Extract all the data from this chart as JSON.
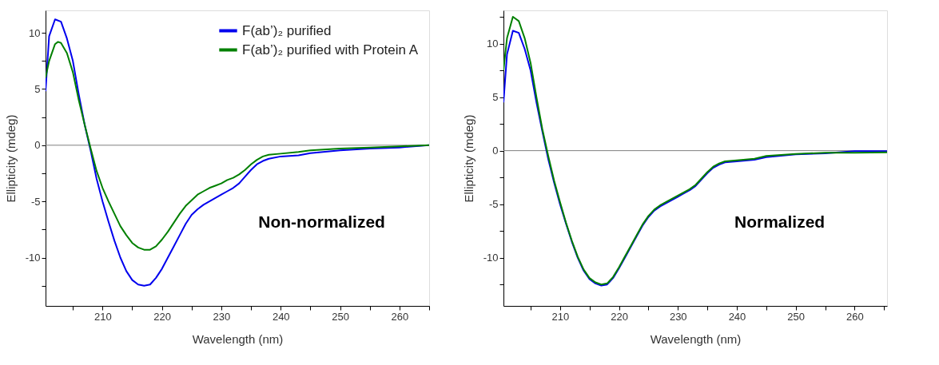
{
  "chart_data": [
    {
      "type": "line",
      "xlabel": "Wavelength (nm)",
      "ylabel": "Ellipticity (mdeg)",
      "annotations": [
        "Non-normalized"
      ],
      "xlim": [
        200.4,
        265
      ],
      "ylim": [
        -14.3,
        12
      ],
      "xticks": [
        {
          "value": 205,
          "label": null
        },
        210,
        {
          "value": 215,
          "label": null
        },
        220,
        {
          "value": 225,
          "label": null
        },
        230,
        {
          "value": 235,
          "label": null
        },
        240,
        {
          "value": 245,
          "label": null
        },
        250,
        {
          "value": 255,
          "label": null
        },
        260,
        {
          "value": 265,
          "label": null
        }
      ],
      "yticks": [
        {
          "value": -12.5,
          "label": null
        },
        -10,
        {
          "value": -7.5,
          "label": null
        },
        -5,
        {
          "value": -2.5,
          "label": null
        },
        0,
        {
          "value": 2.5,
          "label": null
        },
        5,
        {
          "value": 7.5,
          "label": null
        },
        10
      ],
      "grid": false,
      "legend": "top right",
      "line_style": "solid",
      "marker": "none",
      "ref_lines": [
        {
          "axis": "y",
          "value": 0,
          "label": null,
          "color": "#808080"
        }
      ],
      "series": [
        {
          "name": "F(ab’)₂ purified",
          "color": "#0000ee",
          "x": [
            200.4,
            201,
            202,
            203,
            204,
            205,
            206,
            207,
            208,
            209,
            210,
            211,
            212,
            213,
            214,
            215,
            216,
            217,
            218,
            219,
            220,
            221,
            222,
            223,
            224,
            225,
            226,
            227,
            228,
            229,
            230,
            231,
            232,
            233,
            234,
            235,
            236,
            237,
            238,
            240,
            243,
            245,
            250,
            255,
            260,
            265
          ],
          "values": [
            4.8,
            9.7,
            11.2,
            11.0,
            9.5,
            7.5,
            4.5,
            1.8,
            -0.5,
            -3,
            -5,
            -6.8,
            -8.5,
            -10,
            -11.2,
            -12,
            -12.4,
            -12.5,
            -12.4,
            -11.8,
            -11,
            -10,
            -9,
            -8,
            -7,
            -6.2,
            -5.7,
            -5.3,
            -5.0,
            -4.7,
            -4.4,
            -4.1,
            -3.8,
            -3.4,
            -2.8,
            -2.2,
            -1.7,
            -1.4,
            -1.2,
            -1.0,
            -0.9,
            -0.7,
            -0.45,
            -0.3,
            -0.2,
            0
          ]
        },
        {
          "name": "F(ab’)₂ purified with Protein A",
          "color": "#008000",
          "x": [
            200.4,
            201,
            202,
            202.5,
            203,
            204,
            205,
            206,
            207,
            208,
            209,
            210,
            211,
            212,
            213,
            214,
            215,
            216,
            217,
            218,
            219,
            220,
            221,
            222,
            223,
            224,
            225,
            226,
            227,
            228,
            229,
            230,
            231,
            232,
            233,
            234,
            235,
            236,
            237,
            238,
            240,
            243,
            245,
            250,
            255,
            260,
            265
          ],
          "values": [
            6,
            7.5,
            9.0,
            9.2,
            9.1,
            8.2,
            6.5,
            4,
            1.8,
            -0.3,
            -2.3,
            -3.8,
            -5,
            -6.1,
            -7.2,
            -8.0,
            -8.7,
            -9.1,
            -9.3,
            -9.3,
            -9.0,
            -8.4,
            -7.7,
            -6.9,
            -6.1,
            -5.4,
            -4.9,
            -4.4,
            -4.1,
            -3.8,
            -3.6,
            -3.4,
            -3.1,
            -2.9,
            -2.6,
            -2.2,
            -1.7,
            -1.3,
            -1.0,
            -0.85,
            -0.75,
            -0.6,
            -0.45,
            -0.3,
            -0.2,
            -0.1,
            0
          ]
        }
      ]
    },
    {
      "type": "line",
      "xlabel": "Wavelength (nm)",
      "ylabel": "Ellipticity (mdeg)",
      "annotations": [
        "Normalized"
      ],
      "xlim": [
        200.4,
        265.5
      ],
      "ylim": [
        -14.5,
        13.1
      ],
      "xticks": [
        {
          "value": 205,
          "label": null
        },
        210,
        {
          "value": 215,
          "label": null
        },
        220,
        {
          "value": 225,
          "label": null
        },
        230,
        {
          "value": 235,
          "label": null
        },
        240,
        {
          "value": 245,
          "label": null
        },
        250,
        {
          "value": 255,
          "label": null
        },
        260,
        {
          "value": 265,
          "label": null
        }
      ],
      "yticks": [
        {
          "value": -12.5,
          "label": null
        },
        -10,
        {
          "value": -7.5,
          "label": null
        },
        -5,
        {
          "value": -2.5,
          "label": null
        },
        0,
        {
          "value": 2.5,
          "label": null
        },
        5,
        {
          "value": 7.5,
          "label": null
        },
        10,
        {
          "value": 12.5,
          "label": null
        }
      ],
      "grid": false,
      "legend": false,
      "line_style": "solid",
      "marker": "none",
      "ref_lines": [
        {
          "axis": "y",
          "value": 0,
          "label": null,
          "color": "#808080"
        }
      ],
      "series": [
        {
          "color": "#0000ee",
          "x": [
            200.4,
            201,
            202,
            203,
            204,
            205,
            206,
            207,
            208,
            209,
            210,
            211,
            212,
            213,
            214,
            215,
            216,
            217,
            218,
            219,
            220,
            221,
            222,
            223,
            224,
            225,
            226,
            227,
            228,
            229,
            230,
            231,
            232,
            233,
            234,
            235,
            236,
            237,
            238,
            240,
            243,
            245,
            250,
            255,
            260,
            265.5
          ],
          "values": [
            4.5,
            9,
            11.2,
            11.0,
            9.5,
            7.5,
            4.5,
            1.8,
            -0.8,
            -3,
            -5,
            -6.8,
            -8.5,
            -10,
            -11.2,
            -12,
            -12.4,
            -12.6,
            -12.5,
            -11.9,
            -11,
            -10,
            -9,
            -8,
            -7,
            -6.2,
            -5.6,
            -5.2,
            -4.9,
            -4.6,
            -4.3,
            -4.0,
            -3.7,
            -3.3,
            -2.7,
            -2.1,
            -1.6,
            -1.3,
            -1.1,
            -1.0,
            -0.85,
            -0.6,
            -0.35,
            -0.25,
            -0.05,
            -0.05
          ]
        },
        {
          "color": "#008000",
          "x": [
            200.4,
            201,
            202,
            203,
            204,
            205,
            206,
            207,
            208,
            209,
            210,
            211,
            212,
            213,
            214,
            215,
            216,
            217,
            218,
            219,
            220,
            221,
            222,
            223,
            224,
            225,
            226,
            227,
            228,
            229,
            230,
            231,
            232,
            233,
            234,
            235,
            236,
            237,
            238,
            240,
            243,
            245,
            250,
            255,
            260,
            265.5
          ],
          "values": [
            7.5,
            10.5,
            12.5,
            12.1,
            10.5,
            8.2,
            5,
            2,
            -0.5,
            -2.8,
            -4.8,
            -6.7,
            -8.4,
            -9.9,
            -11.1,
            -11.9,
            -12.3,
            -12.5,
            -12.4,
            -11.8,
            -10.9,
            -9.9,
            -8.9,
            -7.9,
            -6.9,
            -6.1,
            -5.5,
            -5.1,
            -4.8,
            -4.5,
            -4.2,
            -3.9,
            -3.6,
            -3.2,
            -2.6,
            -2.0,
            -1.5,
            -1.2,
            -1.0,
            -0.9,
            -0.75,
            -0.5,
            -0.3,
            -0.2,
            -0.2,
            -0.15
          ]
        }
      ]
    }
  ]
}
